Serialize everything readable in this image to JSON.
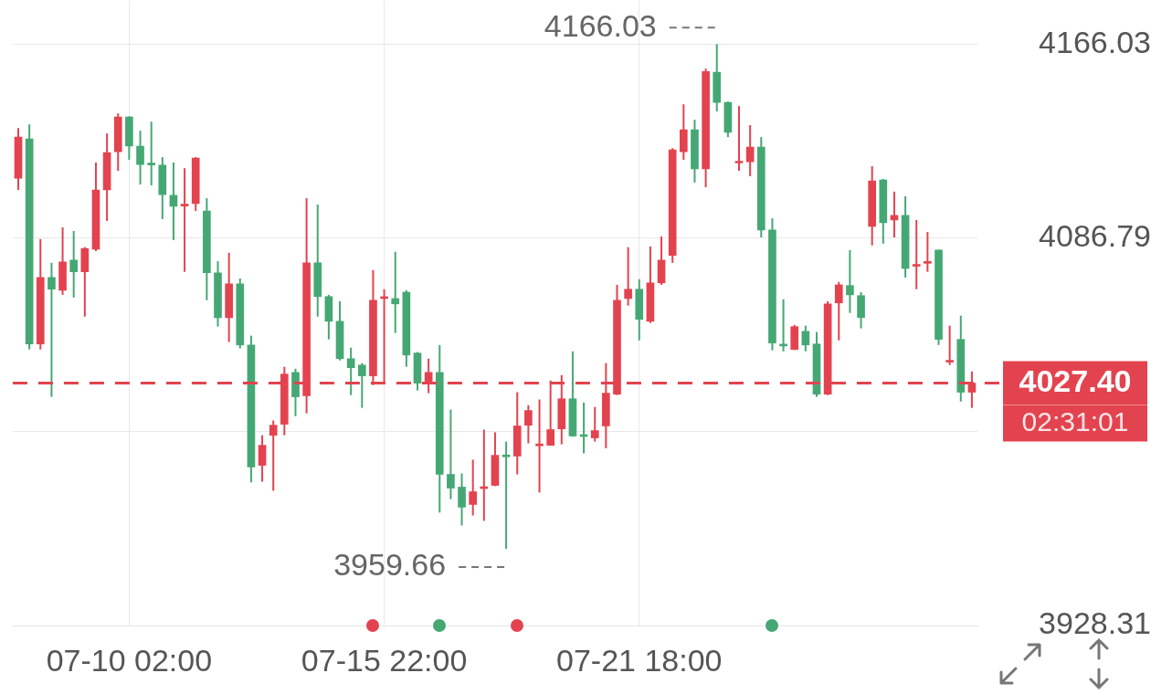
{
  "chart_data": {
    "type": "candlestick",
    "categories": [
      null,
      null,
      null,
      null,
      null,
      null,
      null,
      null,
      null,
      null,
      "07-10 02:00",
      null,
      null,
      null,
      null,
      null,
      null,
      null,
      null,
      null,
      null,
      null,
      null,
      null,
      null,
      null,
      null,
      null,
      null,
      null,
      null,
      null,
      null,
      "07-15 22:00",
      null,
      null,
      null,
      null,
      null,
      null,
      null,
      null,
      null,
      null,
      null,
      null,
      null,
      null,
      null,
      null,
      null,
      null,
      null,
      null,
      null,
      null,
      "07-21 18:00",
      null,
      null,
      null,
      null,
      null,
      null,
      null,
      null,
      null,
      null,
      null,
      null,
      null,
      null,
      null,
      null,
      null,
      null,
      null,
      null,
      null,
      null,
      null,
      null,
      null,
      null,
      null,
      null,
      null,
      null
    ],
    "ohlc": [
      [
        4111.2,
        4131.7,
        4106.4,
        4128.0
      ],
      [
        4127.3,
        4133.2,
        4041.2,
        4043.4
      ],
      [
        4043.4,
        4086.3,
        4041.2,
        4070.6
      ],
      [
        4070.6,
        4076.6,
        4021.8,
        4065.8
      ],
      [
        4065.4,
        4091.1,
        4063.5,
        4077.0
      ],
      [
        4077.7,
        4089.6,
        4062.4,
        4072.9
      ],
      [
        4072.9,
        4083.0,
        4054.6,
        4082.5
      ],
      [
        4082.2,
        4117.6,
        4081.4,
        4106.4
      ],
      [
        4106.4,
        4129.5,
        4093.7,
        4121.7
      ],
      [
        4122.0,
        4137.7,
        4114.2,
        4136.2
      ],
      [
        4136.2,
        4136.5,
        4118.7,
        4124.3
      ],
      [
        4124.3,
        4130.6,
        4108.6,
        4116.8
      ],
      [
        4117.0,
        4134.3,
        4108.3,
        4116.6
      ],
      [
        4116.5,
        4119.8,
        4094.5,
        4104.5
      ],
      [
        4104.2,
        4117.6,
        4085.9,
        4099.7
      ],
      [
        4099.8,
        4115.3,
        4072.9,
        4100.2
      ],
      [
        4100.8,
        4119.8,
        4097.8,
        4119.4
      ],
      [
        4097.8,
        4103.0,
        4061.3,
        4072.5
      ],
      [
        4072.5,
        4077.3,
        4050.5,
        4054.2
      ],
      [
        4054.2,
        4080.7,
        4044.2,
        4068.0
      ],
      [
        4068.0,
        4070.2,
        4041.6,
        4043.0
      ],
      [
        4043.0,
        4046.8,
        3986.8,
        3993.1
      ],
      [
        3993.8,
        4006.1,
        3987.1,
        4002.0
      ],
      [
        4006.1,
        4012.1,
        3983.4,
        4010.2
      ],
      [
        4010.6,
        4034.1,
        4006.1,
        4031.1
      ],
      [
        4031.8,
        4033.3,
        4013.9,
        4021.8
      ],
      [
        4022.2,
        4103.0,
        4015.1,
        4076.6
      ],
      [
        4076.6,
        4100.4,
        4054.6,
        4062.8
      ],
      [
        4062.8,
        4063.5,
        4045.3,
        4052.7
      ],
      [
        4052.7,
        4060.9,
        4036.7,
        4037.4
      ],
      [
        4037.4,
        4041.9,
        4022.5,
        4033.7
      ],
      [
        4034.8,
        4035.6,
        4017.3,
        4030.4
      ],
      [
        4030.4,
        4073.6,
        4026.6,
        4061.3
      ],
      [
        4062.0,
        4065.8,
        4027.4,
        4062.3
      ],
      [
        4062.0,
        4081.1,
        4047.9,
        4059.8
      ],
      [
        4064.6,
        4065.4,
        4034.1,
        4038.9
      ],
      [
        4039.7,
        4040.1,
        4024.4,
        4027.4
      ],
      [
        4027.8,
        4037.4,
        4023.3,
        4031.8
      ],
      [
        4031.8,
        4043.0,
        3974.5,
        3990.1
      ],
      [
        3990.1,
        4016.6,
        3980.0,
        3984.5
      ],
      [
        3984.9,
        3990.5,
        3969.2,
        3976.7
      ],
      [
        3977.8,
        3996.1,
        3973.3,
        3983.0
      ],
      [
        3984.3,
        4008.4,
        3971.1,
        3984.7
      ],
      [
        3985.6,
        4007.3,
        3985.3,
        3997.9
      ],
      [
        3997.7,
        4003.5,
        3959.66,
        3997.3
      ],
      [
        3997.6,
        4023.7,
        3990.1,
        4009.9
      ],
      [
        4010.2,
        4018.4,
        4002.8,
        4016.2
      ],
      [
        4001.8,
        4020.7,
        3982.7,
        4002.2
      ],
      [
        4002.0,
        4028.5,
        4001.8,
        4008.4
      ],
      [
        4008.7,
        4030.7,
        4002.4,
        4021.0
      ],
      [
        4021.0,
        4040.4,
        4005.5,
        4005.8
      ],
      [
        4006.0,
        4019.5,
        3998.7,
        4005.6
      ],
      [
        4005.0,
        4017.7,
        4003.5,
        4008.0
      ],
      [
        4009.9,
        4035.6,
        4000.8,
        4023.3
      ],
      [
        4022.9,
        4067.6,
        4022.5,
        4061.3
      ],
      [
        4062.0,
        4083.0,
        4059.1,
        4065.8
      ],
      [
        4065.8,
        4069.9,
        4044.9,
        4053.5
      ],
      [
        4052.7,
        4083.3,
        4052.0,
        4068.4
      ],
      [
        4068.4,
        4087.4,
        4067.6,
        4077.7
      ],
      [
        4079.6,
        4123.5,
        4076.6,
        4122.8
      ],
      [
        4122.0,
        4141.4,
        4118.7,
        4131.0
      ],
      [
        4131.0,
        4135.1,
        4109.4,
        4115.0
      ],
      [
        4115.0,
        4156.0,
        4107.5,
        4154.8
      ],
      [
        4154.5,
        4166.03,
        4138.5,
        4142.2
      ],
      [
        4142.2,
        4142.5,
        4128.0,
        4129.9
      ],
      [
        4117.4,
        4140.7,
        4114.2,
        4117.8
      ],
      [
        4117.9,
        4132.9,
        4112.0,
        4123.9
      ],
      [
        4123.9,
        4128.0,
        4087.0,
        4090.0
      ],
      [
        4090.0,
        4094.8,
        4040.8,
        4043.8
      ],
      [
        4042.9,
        4061.7,
        4040.4,
        4042.6
      ],
      [
        4041.2,
        4051.2,
        4040.9,
        4050.5
      ],
      [
        4048.6,
        4050.9,
        4040.4,
        4043.0
      ],
      [
        4043.4,
        4048.3,
        4021.8,
        4022.9
      ],
      [
        4022.9,
        4060.9,
        4022.5,
        4059.8
      ],
      [
        4060.2,
        4068.8,
        4044.9,
        4067.6
      ],
      [
        4067.3,
        4081.8,
        4056.1,
        4063.5
      ],
      [
        4063.2,
        4064.6,
        4049.8,
        4054.2
      ],
      [
        4091.5,
        4116.1,
        4083.7,
        4110.1
      ],
      [
        4110.5,
        4110.9,
        4084.4,
        4093.0
      ],
      [
        4094.1,
        4105.7,
        4087.0,
        4096.0
      ],
      [
        4096.0,
        4103.8,
        4070.6,
        4074.3
      ],
      [
        4075.2,
        4094.1,
        4065.8,
        4075.6
      ],
      [
        4076.4,
        4089.2,
        4072.9,
        4076.8
      ],
      [
        4081.8,
        4082.0,
        4043.0,
        4045.3
      ],
      [
        4036.0,
        4050.9,
        4034.8,
        4036.5
      ],
      [
        4045.3,
        4055.0,
        4019.9,
        4023.7
      ],
      [
        4023.7,
        4032.2,
        4017.3,
        4027.4
      ]
    ],
    "colors": [
      "#e3434f",
      "#45a874",
      "#e3434f",
      "#45a874",
      "#e3434f",
      "#45a874",
      "#e3434f",
      "#e3434f",
      "#e3434f",
      "#e3434f",
      "#45a874",
      "#45a874",
      "#45a874",
      "#45a874",
      "#45a874",
      "#e3434f",
      "#e3434f",
      "#45a874",
      "#45a874",
      "#e3434f",
      "#45a874",
      "#45a874",
      "#e3434f",
      "#e3434f",
      "#e3434f",
      "#45a874",
      "#e3434f",
      "#45a874",
      "#45a874",
      "#45a874",
      "#45a874",
      "#45a874",
      "#e3434f",
      "#e3434f",
      "#45a874",
      "#45a874",
      "#45a874",
      "#e3434f",
      "#45a874",
      "#45a874",
      "#45a874",
      "#e3434f",
      "#e3434f",
      "#e3434f",
      "#45a874",
      "#e3434f",
      "#e3434f",
      "#e3434f",
      "#e3434f",
      "#e3434f",
      "#45a874",
      "#45a874",
      "#e3434f",
      "#e3434f",
      "#e3434f",
      "#e3434f",
      "#45a874",
      "#e3434f",
      "#e3434f",
      "#e3434f",
      "#e3434f",
      "#45a874",
      "#e3434f",
      "#45a874",
      "#45a874",
      "#e3434f",
      "#e3434f",
      "#45a874",
      "#45a874",
      "#45a874",
      "#e3434f",
      "#45a874",
      "#45a874",
      "#e3434f",
      "#e3434f",
      "#45a874",
      "#45a874",
      "#e3434f",
      "#45a874",
      "#e3434f",
      "#45a874",
      "#e3434f",
      "#e3434f",
      "#45a874",
      "#e3434f",
      "#45a874",
      "#e3434f"
    ],
    "ylim": [
      3928.31,
      4183.9
    ],
    "yticks": [
      3928.31,
      {
        "value": 4007.55,
        "label": null
      },
      4086.79,
      4166.03
    ],
    "grid": true,
    "ref_lines": [
      {
        "axis": "y",
        "value": 4027.4,
        "label": "4027.40",
        "color": "#e3434f",
        "line_style": "dashed"
      }
    ],
    "annotations": [
      "02:31:01",
      "4166.03",
      "3959.66"
    ]
  }
}
